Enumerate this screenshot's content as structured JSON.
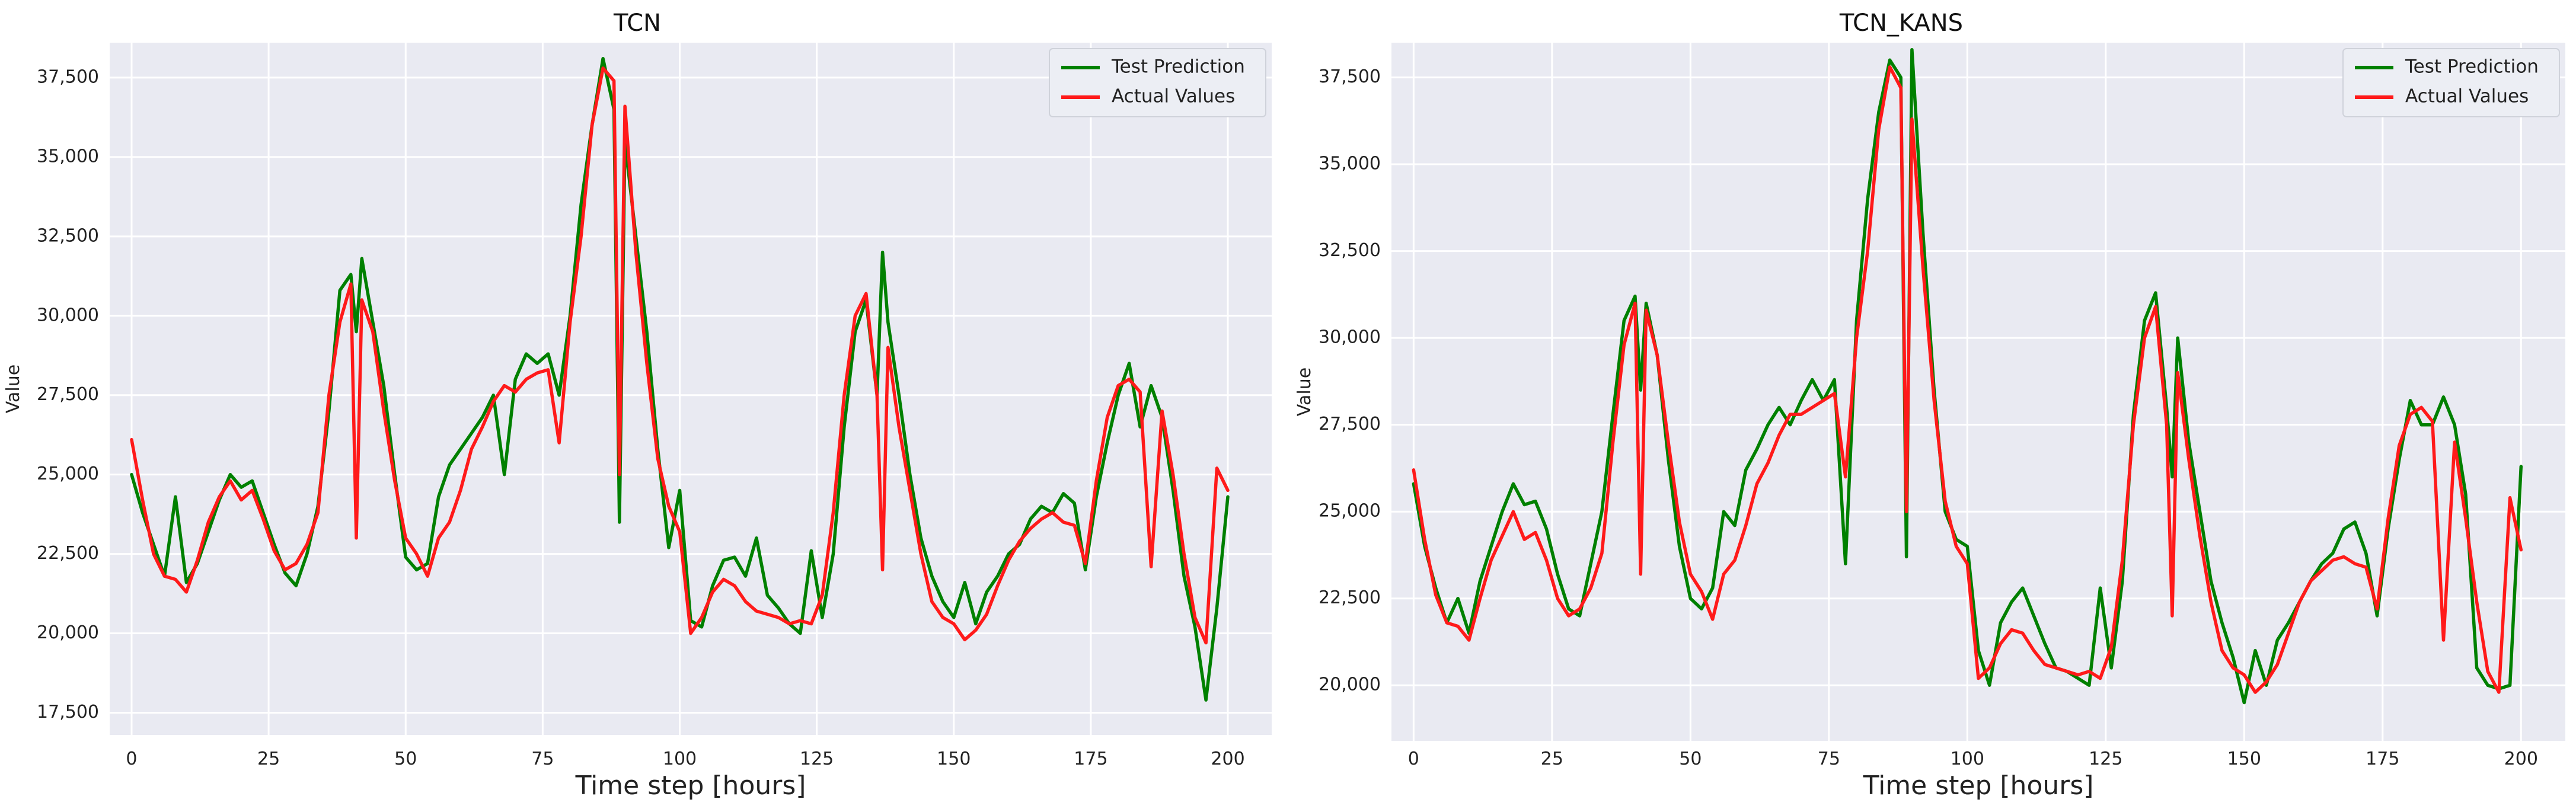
{
  "colors": {
    "test_prediction": "#008000",
    "actual_values": "#ff1a1a"
  },
  "chart_data": [
    {
      "type": "line",
      "title": "TCN",
      "xlabel": "Time step [hours]",
      "ylabel": "Value",
      "xlim": [
        -4,
        208
      ],
      "ylim": [
        16800,
        38600
      ],
      "xticks": [
        0,
        25,
        50,
        75,
        100,
        125,
        150,
        175,
        200
      ],
      "xtick_labels": [
        "0",
        "25",
        "50",
        "75",
        "100",
        "125",
        "150",
        "175",
        "200"
      ],
      "yticks": [
        17500,
        20000,
        22500,
        25000,
        27500,
        30000,
        32500,
        35000,
        37500
      ],
      "ytick_labels": [
        "17,500",
        "20,000",
        "22,500",
        "25,000",
        "27,500",
        "30,000",
        "32,500",
        "35,000",
        "37,500"
      ],
      "grid": true,
      "legend": "top-right",
      "series": [
        {
          "name": "Test Prediction",
          "color_key": "test_prediction",
          "x": [
            0,
            2,
            4,
            6,
            8,
            10,
            12,
            14,
            16,
            18,
            20,
            22,
            24,
            26,
            28,
            30,
            32,
            34,
            36,
            38,
            40,
            41,
            42,
            44,
            46,
            48,
            50,
            52,
            54,
            56,
            58,
            60,
            62,
            64,
            66,
            68,
            70,
            72,
            74,
            76,
            78,
            80,
            82,
            84,
            86,
            88,
            89,
            90,
            92,
            94,
            96,
            98,
            100,
            102,
            104,
            106,
            108,
            110,
            112,
            114,
            116,
            118,
            120,
            122,
            124,
            126,
            128,
            130,
            132,
            134,
            136,
            137,
            138,
            140,
            142,
            144,
            146,
            148,
            150,
            152,
            154,
            156,
            158,
            160,
            162,
            164,
            166,
            168,
            170,
            172,
            174,
            176,
            178,
            180,
            182,
            184,
            186,
            188,
            190,
            192,
            194,
            196,
            198,
            200
          ],
          "y": [
            25000,
            23800,
            22800,
            21800,
            24300,
            21600,
            22200,
            23200,
            24200,
            25000,
            24600,
            24800,
            23800,
            22800,
            21900,
            21500,
            22500,
            24000,
            27000,
            30800,
            31300,
            29500,
            31800,
            29800,
            27800,
            25000,
            22400,
            22000,
            22200,
            24300,
            25300,
            25800,
            26300,
            26800,
            27500,
            25000,
            28000,
            28800,
            28500,
            28800,
            27500,
            30000,
            33500,
            36000,
            38100,
            36500,
            23500,
            35500,
            32500,
            29500,
            25800,
            22700,
            24500,
            20400,
            20200,
            21500,
            22300,
            22400,
            21800,
            23000,
            21200,
            20800,
            20300,
            20000,
            22600,
            20500,
            22500,
            26500,
            29500,
            30500,
            27500,
            32000,
            29800,
            27500,
            25000,
            23000,
            21800,
            21000,
            20500,
            21600,
            20300,
            21300,
            21800,
            22500,
            22800,
            23600,
            24000,
            23800,
            24400,
            24100,
            22000,
            24300,
            26000,
            27500,
            28500,
            26500,
            27800,
            26800,
            24500,
            21800,
            20200,
            17900,
            20800,
            24300
          ],
          "labels": []
        },
        {
          "name": "Actual Values",
          "color_key": "actual_values",
          "x": [
            0,
            2,
            4,
            6,
            8,
            10,
            12,
            14,
            16,
            18,
            20,
            22,
            24,
            26,
            28,
            30,
            32,
            34,
            36,
            38,
            40,
            41,
            42,
            44,
            46,
            48,
            50,
            52,
            54,
            56,
            58,
            60,
            62,
            64,
            66,
            68,
            70,
            72,
            74,
            76,
            78,
            80,
            82,
            84,
            86,
            88,
            89,
            90,
            92,
            94,
            96,
            98,
            100,
            102,
            104,
            106,
            108,
            110,
            112,
            114,
            116,
            118,
            120,
            122,
            124,
            126,
            128,
            130,
            132,
            134,
            136,
            137,
            138,
            140,
            142,
            144,
            146,
            148,
            150,
            152,
            154,
            156,
            158,
            160,
            162,
            164,
            166,
            168,
            170,
            172,
            174,
            176,
            178,
            180,
            182,
            184,
            186,
            188,
            190,
            192,
            194,
            196,
            198,
            200
          ],
          "y": [
            26100,
            24200,
            22500,
            21800,
            21700,
            21300,
            22300,
            23500,
            24300,
            24800,
            24200,
            24500,
            23600,
            22600,
            22000,
            22200,
            22800,
            23800,
            27500,
            29800,
            31000,
            23000,
            30500,
            29500,
            27000,
            24800,
            23000,
            22500,
            21800,
            23000,
            23500,
            24500,
            25800,
            26500,
            27300,
            27800,
            27600,
            28000,
            28200,
            28300,
            26000,
            29800,
            32500,
            36000,
            37800,
            37400,
            25000,
            36600,
            32000,
            28500,
            25500,
            24000,
            23200,
            20000,
            20500,
            21300,
            21700,
            21500,
            21000,
            20700,
            20600,
            20500,
            20300,
            20400,
            20300,
            21200,
            23800,
            27500,
            30000,
            30700,
            27500,
            22000,
            29000,
            26500,
            24500,
            22500,
            21000,
            20500,
            20300,
            19800,
            20100,
            20600,
            21500,
            22300,
            22900,
            23300,
            23600,
            23800,
            23500,
            23400,
            22200,
            24800,
            26800,
            27800,
            28000,
            27600,
            22100,
            27000,
            25000,
            22500,
            20500,
            19700,
            25200,
            24500
          ],
          "labels": []
        }
      ]
    },
    {
      "type": "line",
      "title": "TCN_KANS",
      "xlabel": "Time step [hours]",
      "ylabel": "Value",
      "xlim": [
        -4,
        208
      ],
      "ylim": [
        18400,
        38500
      ],
      "xticks": [
        0,
        25,
        50,
        75,
        100,
        125,
        150,
        175,
        200
      ],
      "xtick_labels": [
        "0",
        "25",
        "50",
        "75",
        "100",
        "125",
        "150",
        "175",
        "200"
      ],
      "yticks": [
        20000,
        22500,
        25000,
        27500,
        30000,
        32500,
        35000,
        37500
      ],
      "ytick_labels": [
        "20,000",
        "22,500",
        "25,000",
        "27,500",
        "30,000",
        "32,500",
        "35,000",
        "37,500"
      ],
      "grid": true,
      "legend": "top-right",
      "series": [
        {
          "name": "Test Prediction",
          "color_key": "test_prediction",
          "x": [
            0,
            2,
            4,
            6,
            8,
            10,
            12,
            14,
            16,
            18,
            20,
            22,
            24,
            26,
            28,
            30,
            32,
            34,
            36,
            38,
            40,
            41,
            42,
            44,
            46,
            48,
            50,
            52,
            54,
            56,
            58,
            60,
            62,
            64,
            66,
            68,
            70,
            72,
            74,
            76,
            78,
            80,
            82,
            84,
            86,
            88,
            89,
            90,
            92,
            94,
            96,
            98,
            100,
            102,
            104,
            106,
            108,
            110,
            112,
            114,
            116,
            118,
            120,
            122,
            124,
            126,
            128,
            130,
            132,
            134,
            136,
            137,
            138,
            140,
            142,
            144,
            146,
            148,
            150,
            152,
            154,
            156,
            158,
            160,
            162,
            164,
            166,
            168,
            170,
            172,
            174,
            176,
            178,
            180,
            182,
            184,
            186,
            188,
            190,
            192,
            194,
            196,
            198,
            200
          ],
          "y": [
            25800,
            24000,
            22800,
            21800,
            22500,
            21500,
            23000,
            24000,
            25000,
            25800,
            25200,
            25300,
            24500,
            23200,
            22200,
            22000,
            23500,
            25000,
            27800,
            30500,
            31200,
            28500,
            31000,
            29500,
            26500,
            24000,
            22500,
            22200,
            22800,
            25000,
            24600,
            26200,
            26800,
            27500,
            28000,
            27500,
            28200,
            28800,
            28200,
            28800,
            23500,
            30500,
            34000,
            36500,
            38000,
            37500,
            23700,
            38300,
            33000,
            28500,
            25000,
            24200,
            24000,
            21000,
            20000,
            21800,
            22400,
            22800,
            22000,
            21200,
            20500,
            20400,
            20200,
            20000,
            22800,
            20500,
            23000,
            27800,
            30500,
            31300,
            28000,
            26000,
            30000,
            27000,
            25000,
            23000,
            21800,
            20800,
            19500,
            21000,
            20000,
            21300,
            21800,
            22400,
            23000,
            23500,
            23800,
            24500,
            24700,
            23800,
            22000,
            24500,
            26500,
            28200,
            27500,
            27500,
            28300,
            27500,
            25500,
            20500,
            20000,
            19900,
            20000,
            26300
          ],
          "labels": []
        },
        {
          "name": "Actual Values",
          "color_key": "actual_values",
          "x": [
            0,
            2,
            4,
            6,
            8,
            10,
            12,
            14,
            16,
            18,
            20,
            22,
            24,
            26,
            28,
            30,
            32,
            34,
            36,
            38,
            40,
            41,
            42,
            44,
            46,
            48,
            50,
            52,
            54,
            56,
            58,
            60,
            62,
            64,
            66,
            68,
            70,
            72,
            74,
            76,
            78,
            80,
            82,
            84,
            86,
            88,
            89,
            90,
            92,
            94,
            96,
            98,
            100,
            102,
            104,
            106,
            108,
            110,
            112,
            114,
            116,
            118,
            120,
            122,
            124,
            126,
            128,
            130,
            132,
            134,
            136,
            137,
            138,
            140,
            142,
            144,
            146,
            148,
            150,
            152,
            154,
            156,
            158,
            160,
            162,
            164,
            166,
            168,
            170,
            172,
            174,
            176,
            178,
            180,
            182,
            184,
            186,
            188,
            190,
            192,
            194,
            196,
            198,
            200
          ],
          "y": [
            26200,
            24200,
            22600,
            21800,
            21700,
            21300,
            22500,
            23600,
            24300,
            25000,
            24200,
            24400,
            23600,
            22500,
            22000,
            22200,
            22800,
            23800,
            27000,
            29800,
            31000,
            23200,
            30800,
            29500,
            27000,
            24700,
            23200,
            22700,
            21900,
            23200,
            23600,
            24600,
            25800,
            26400,
            27200,
            27800,
            27800,
            28000,
            28200,
            28400,
            26000,
            30000,
            32500,
            36000,
            37800,
            37200,
            25000,
            36300,
            32000,
            28200,
            25300,
            24000,
            23500,
            20200,
            20500,
            21200,
            21600,
            21500,
            21000,
            20600,
            20500,
            20400,
            20300,
            20400,
            20200,
            21100,
            23600,
            27500,
            30000,
            30900,
            27500,
            22000,
            29000,
            26500,
            24300,
            22400,
            21000,
            20500,
            20300,
            19800,
            20100,
            20600,
            21500,
            22400,
            23000,
            23300,
            23600,
            23700,
            23500,
            23400,
            22200,
            24800,
            26900,
            27800,
            28000,
            27600,
            21300,
            27000,
            24800,
            22400,
            20400,
            19800,
            25400,
            23900
          ],
          "labels": []
        }
      ]
    }
  ]
}
